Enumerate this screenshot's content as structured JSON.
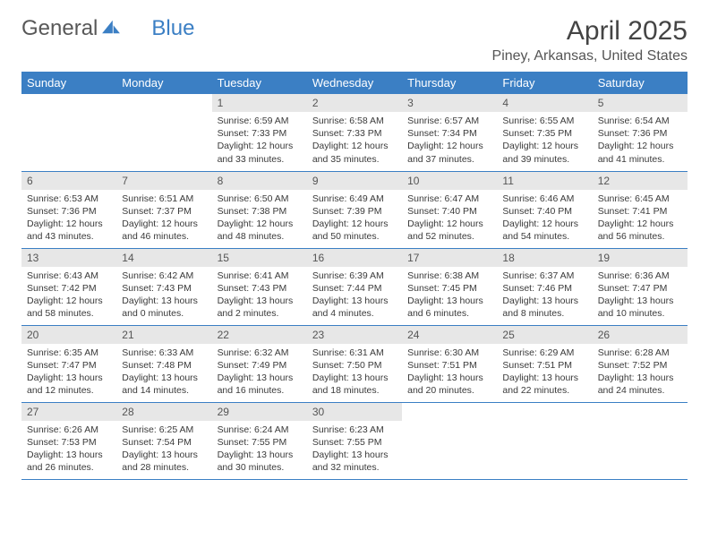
{
  "logo": {
    "text_general": "General",
    "text_blue": "Blue"
  },
  "title": "April 2025",
  "location": "Piney, Arkansas, United States",
  "colors": {
    "header_bg": "#3b7fc4",
    "daynum_bg": "#e7e7e7",
    "border": "#3b7fc4",
    "text": "#3a3a3a"
  },
  "weekdays": [
    "Sunday",
    "Monday",
    "Tuesday",
    "Wednesday",
    "Thursday",
    "Friday",
    "Saturday"
  ],
  "weeks": [
    [
      null,
      null,
      {
        "n": "1",
        "sunrise": "Sunrise: 6:59 AM",
        "sunset": "Sunset: 7:33 PM",
        "day": "Daylight: 12 hours and 33 minutes."
      },
      {
        "n": "2",
        "sunrise": "Sunrise: 6:58 AM",
        "sunset": "Sunset: 7:33 PM",
        "day": "Daylight: 12 hours and 35 minutes."
      },
      {
        "n": "3",
        "sunrise": "Sunrise: 6:57 AM",
        "sunset": "Sunset: 7:34 PM",
        "day": "Daylight: 12 hours and 37 minutes."
      },
      {
        "n": "4",
        "sunrise": "Sunrise: 6:55 AM",
        "sunset": "Sunset: 7:35 PM",
        "day": "Daylight: 12 hours and 39 minutes."
      },
      {
        "n": "5",
        "sunrise": "Sunrise: 6:54 AM",
        "sunset": "Sunset: 7:36 PM",
        "day": "Daylight: 12 hours and 41 minutes."
      }
    ],
    [
      {
        "n": "6",
        "sunrise": "Sunrise: 6:53 AM",
        "sunset": "Sunset: 7:36 PM",
        "day": "Daylight: 12 hours and 43 minutes."
      },
      {
        "n": "7",
        "sunrise": "Sunrise: 6:51 AM",
        "sunset": "Sunset: 7:37 PM",
        "day": "Daylight: 12 hours and 46 minutes."
      },
      {
        "n": "8",
        "sunrise": "Sunrise: 6:50 AM",
        "sunset": "Sunset: 7:38 PM",
        "day": "Daylight: 12 hours and 48 minutes."
      },
      {
        "n": "9",
        "sunrise": "Sunrise: 6:49 AM",
        "sunset": "Sunset: 7:39 PM",
        "day": "Daylight: 12 hours and 50 minutes."
      },
      {
        "n": "10",
        "sunrise": "Sunrise: 6:47 AM",
        "sunset": "Sunset: 7:40 PM",
        "day": "Daylight: 12 hours and 52 minutes."
      },
      {
        "n": "11",
        "sunrise": "Sunrise: 6:46 AM",
        "sunset": "Sunset: 7:40 PM",
        "day": "Daylight: 12 hours and 54 minutes."
      },
      {
        "n": "12",
        "sunrise": "Sunrise: 6:45 AM",
        "sunset": "Sunset: 7:41 PM",
        "day": "Daylight: 12 hours and 56 minutes."
      }
    ],
    [
      {
        "n": "13",
        "sunrise": "Sunrise: 6:43 AM",
        "sunset": "Sunset: 7:42 PM",
        "day": "Daylight: 12 hours and 58 minutes."
      },
      {
        "n": "14",
        "sunrise": "Sunrise: 6:42 AM",
        "sunset": "Sunset: 7:43 PM",
        "day": "Daylight: 13 hours and 0 minutes."
      },
      {
        "n": "15",
        "sunrise": "Sunrise: 6:41 AM",
        "sunset": "Sunset: 7:43 PM",
        "day": "Daylight: 13 hours and 2 minutes."
      },
      {
        "n": "16",
        "sunrise": "Sunrise: 6:39 AM",
        "sunset": "Sunset: 7:44 PM",
        "day": "Daylight: 13 hours and 4 minutes."
      },
      {
        "n": "17",
        "sunrise": "Sunrise: 6:38 AM",
        "sunset": "Sunset: 7:45 PM",
        "day": "Daylight: 13 hours and 6 minutes."
      },
      {
        "n": "18",
        "sunrise": "Sunrise: 6:37 AM",
        "sunset": "Sunset: 7:46 PM",
        "day": "Daylight: 13 hours and 8 minutes."
      },
      {
        "n": "19",
        "sunrise": "Sunrise: 6:36 AM",
        "sunset": "Sunset: 7:47 PM",
        "day": "Daylight: 13 hours and 10 minutes."
      }
    ],
    [
      {
        "n": "20",
        "sunrise": "Sunrise: 6:35 AM",
        "sunset": "Sunset: 7:47 PM",
        "day": "Daylight: 13 hours and 12 minutes."
      },
      {
        "n": "21",
        "sunrise": "Sunrise: 6:33 AM",
        "sunset": "Sunset: 7:48 PM",
        "day": "Daylight: 13 hours and 14 minutes."
      },
      {
        "n": "22",
        "sunrise": "Sunrise: 6:32 AM",
        "sunset": "Sunset: 7:49 PM",
        "day": "Daylight: 13 hours and 16 minutes."
      },
      {
        "n": "23",
        "sunrise": "Sunrise: 6:31 AM",
        "sunset": "Sunset: 7:50 PM",
        "day": "Daylight: 13 hours and 18 minutes."
      },
      {
        "n": "24",
        "sunrise": "Sunrise: 6:30 AM",
        "sunset": "Sunset: 7:51 PM",
        "day": "Daylight: 13 hours and 20 minutes."
      },
      {
        "n": "25",
        "sunrise": "Sunrise: 6:29 AM",
        "sunset": "Sunset: 7:51 PM",
        "day": "Daylight: 13 hours and 22 minutes."
      },
      {
        "n": "26",
        "sunrise": "Sunrise: 6:28 AM",
        "sunset": "Sunset: 7:52 PM",
        "day": "Daylight: 13 hours and 24 minutes."
      }
    ],
    [
      {
        "n": "27",
        "sunrise": "Sunrise: 6:26 AM",
        "sunset": "Sunset: 7:53 PM",
        "day": "Daylight: 13 hours and 26 minutes."
      },
      {
        "n": "28",
        "sunrise": "Sunrise: 6:25 AM",
        "sunset": "Sunset: 7:54 PM",
        "day": "Daylight: 13 hours and 28 minutes."
      },
      {
        "n": "29",
        "sunrise": "Sunrise: 6:24 AM",
        "sunset": "Sunset: 7:55 PM",
        "day": "Daylight: 13 hours and 30 minutes."
      },
      {
        "n": "30",
        "sunrise": "Sunrise: 6:23 AM",
        "sunset": "Sunset: 7:55 PM",
        "day": "Daylight: 13 hours and 32 minutes."
      },
      null,
      null,
      null
    ]
  ]
}
